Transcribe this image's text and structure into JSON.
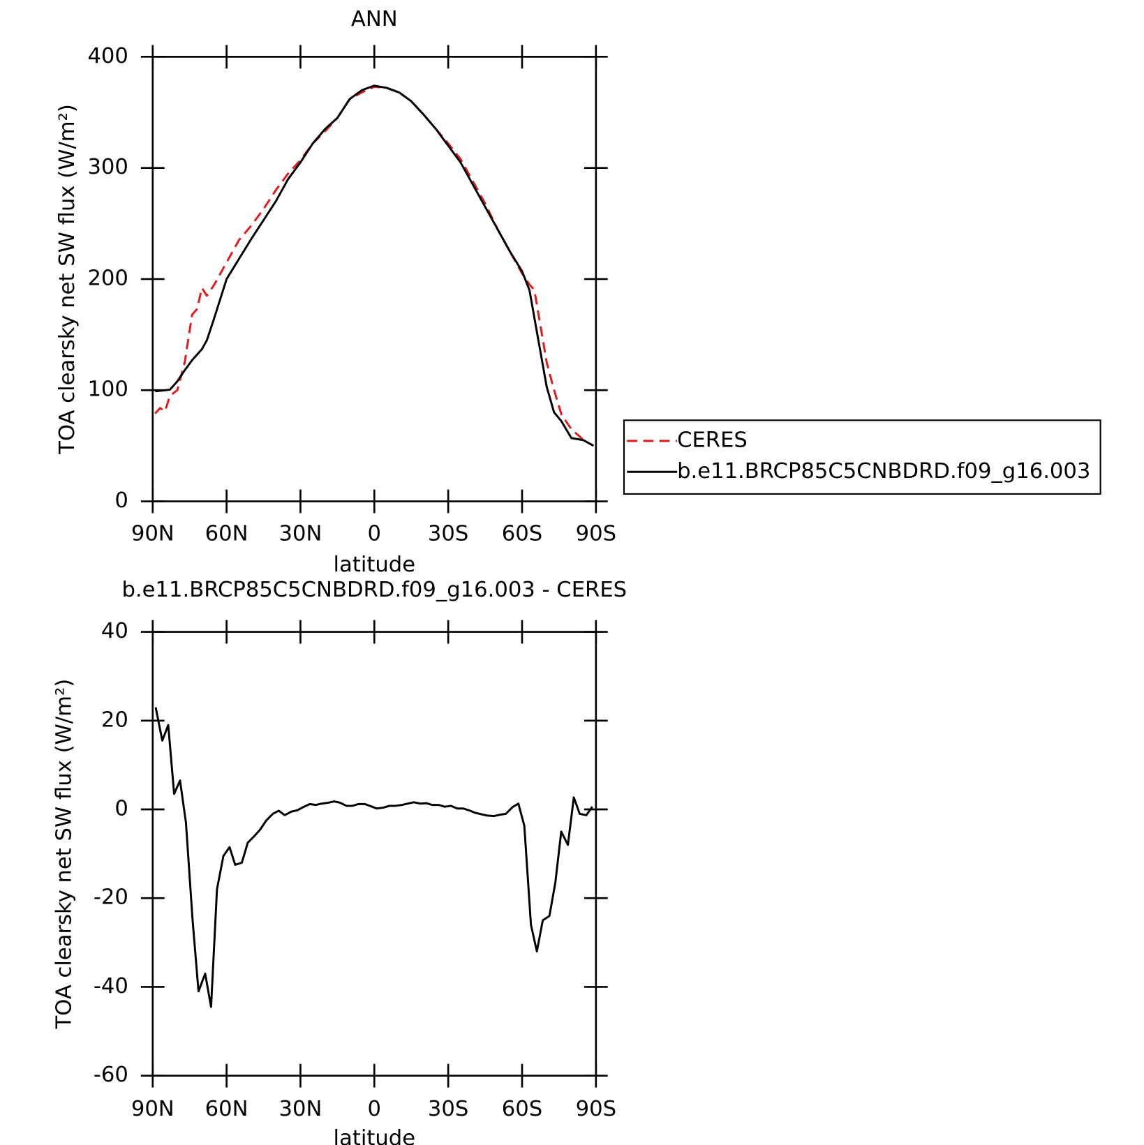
{
  "chart_data": [
    {
      "type": "line",
      "title": "ANN",
      "xlabel": "latitude",
      "ylabel": "TOA clearsky net SW flux (W/m²)",
      "x": [
        89,
        87,
        85,
        83,
        80,
        77,
        74,
        72,
        70,
        68,
        65,
        60,
        55,
        50,
        45,
        40,
        35,
        30,
        25,
        20,
        15,
        10,
        5,
        0,
        -5,
        -10,
        -15,
        -20,
        -25,
        -30,
        -35,
        -40,
        -45,
        -50,
        -55,
        -60,
        -63,
        -65,
        -70,
        -73,
        -76,
        -80,
        -85,
        -89
      ],
      "series": [
        {
          "name": "CERES",
          "color": "#e31a1c",
          "line_style": "dashed",
          "values": [
            79,
            84,
            81,
            95,
            100,
            125,
            168,
            173,
            192,
            185,
            195,
            215,
            235,
            248,
            263,
            280,
            295,
            307,
            322,
            333,
            345,
            362,
            368,
            373,
            372,
            368,
            360,
            348,
            335,
            322,
            308,
            288,
            268,
            245,
            225,
            205,
            195,
            190,
            125,
            100,
            78,
            65,
            55,
            50
          ]
        },
        {
          "name": "b.e11.BRCP85C5CNBDRD.f09_g16.003",
          "color": "#000000",
          "line_style": "solid",
          "values": [
            99,
            99.5,
            100,
            100.5,
            108,
            118,
            127,
            132,
            137,
            145,
            165,
            200,
            218,
            236,
            253,
            270,
            290,
            305,
            322,
            335,
            345,
            362,
            370,
            374,
            372,
            368,
            360,
            348,
            335,
            320,
            305,
            285,
            265,
            245,
            225,
            207,
            190,
            165,
            103,
            80,
            72,
            57,
            55,
            50
          ]
        }
      ],
      "xlim": [
        90,
        -90
      ],
      "xticks": [
        {
          "value": 90,
          "label": "90N"
        },
        {
          "value": 60,
          "label": "60N"
        },
        {
          "value": 30,
          "label": "30N"
        },
        0,
        {
          "value": -30,
          "label": "30S"
        },
        {
          "value": -60,
          "label": "60S"
        },
        {
          "value": -90,
          "label": "90S"
        }
      ],
      "ylim": [
        0,
        400
      ],
      "yticks": [
        0,
        100,
        200,
        300,
        400
      ],
      "legend": "right"
    },
    {
      "type": "line",
      "title": "b.e11.BRCP85C5CNBDRD.f09_g16.003 - CERES",
      "xlabel": "latitude",
      "ylabel": "TOA clearsky net SW flux (W/m²)",
      "x": [
        88.8,
        86.1,
        83.7,
        81.3,
        78.9,
        76.5,
        73.8,
        71.4,
        68.7,
        66.3,
        63.9,
        61.3,
        58.8,
        56.5,
        53.8,
        51.4,
        48.7,
        46.3,
        43.9,
        41.2,
        38.8,
        36.4,
        33.7,
        31.3,
        28.9,
        26.2,
        23.8,
        21.4,
        18.7,
        16.3,
        13.9,
        11.3,
        8.9,
        6.5,
        3.8,
        1.4,
        -1,
        -3.7,
        -6.1,
        -8.5,
        -11.2,
        -13.6,
        -16,
        -18.7,
        -21.1,
        -23.5,
        -26.2,
        -28.6,
        -31,
        -33.7,
        -36.1,
        -38.4,
        -41.1,
        -43.5,
        -45.9,
        -48.6,
        -51,
        -53.4,
        -56.1,
        -58.5,
        -60.9,
        -63.6,
        -66,
        -68.4,
        -71.1,
        -73.5,
        -75.9,
        -78.6,
        -81,
        -83.4,
        -86.1,
        -88.5
      ],
      "values": [
        23,
        15.5,
        19,
        3.5,
        6.5,
        -3,
        -25,
        -41,
        -37,
        -44.5,
        -18,
        -10.5,
        -8.5,
        -12.5,
        -12,
        -7.5,
        -6,
        -4.5,
        -2.5,
        -1,
        -0.3,
        -1.3,
        -0.5,
        -0.2,
        0.5,
        1.2,
        1,
        1.3,
        1.5,
        1.8,
        1.5,
        0.8,
        0.8,
        1.2,
        1.2,
        0.7,
        0.2,
        0.4,
        0.8,
        0.8,
        1,
        1.3,
        1.6,
        1.3,
        1.4,
        1,
        1,
        0.6,
        0.8,
        0.2,
        0.2,
        -0.2,
        -0.8,
        -1.1,
        -1.4,
        -1.5,
        -1.2,
        -1,
        0.5,
        1.3,
        -3.7,
        -26,
        -32,
        -25,
        -24,
        -16.5,
        -5,
        -8,
        2.7,
        -1,
        -1.3,
        0.6
      ],
      "color": "#000000",
      "xlim": [
        90,
        -90
      ],
      "xticks": [
        {
          "value": 90,
          "label": "90N"
        },
        {
          "value": 60,
          "label": "60N"
        },
        {
          "value": 30,
          "label": "30N"
        },
        0,
        {
          "value": -30,
          "label": "30S"
        },
        {
          "value": -60,
          "label": "60S"
        },
        {
          "value": -90,
          "label": "90S"
        }
      ],
      "ylim": [
        -60,
        40
      ],
      "yticks": [
        -60,
        -40,
        -20,
        0,
        20,
        40
      ]
    }
  ]
}
